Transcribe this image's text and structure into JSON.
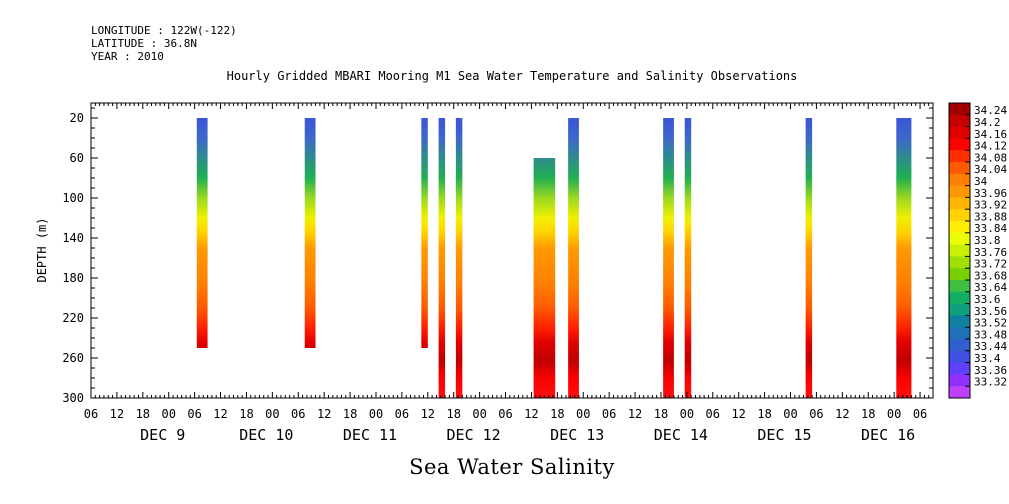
{
  "header": {
    "longitude": "LONGITUDE : 122W(-122)",
    "latitude": "LATITUDE : 36.8N",
    "year": "YEAR : 2010"
  },
  "chart_data": {
    "type": "heatmap",
    "title": "Hourly Gridded MBARI Mooring M1 Sea Water Temperature and Salinity Observations",
    "variable_label": "Sea Water Salinity",
    "ylabel": "DEPTH (m)",
    "yreversed": true,
    "ylim": [
      300,
      0
    ],
    "yticks": [
      20,
      60,
      100,
      140,
      180,
      220,
      260,
      300
    ],
    "xunit": "hours since DEC 8 06:00",
    "xlim": [
      0,
      195
    ],
    "xtick_labels": [
      "06",
      "12",
      "18",
      "00",
      "06",
      "12",
      "18",
      "00",
      "06",
      "12",
      "18",
      "00",
      "06",
      "12",
      "18",
      "00",
      "06",
      "12",
      "18",
      "00",
      "06",
      "12",
      "18",
      "00",
      "06",
      "12",
      "18",
      "00",
      "06",
      "12",
      "18",
      "00",
      "06"
    ],
    "day_labels": [
      "DEC  9",
      "DEC 10",
      "DEC 11",
      "DEC 12",
      "DEC 13",
      "DEC 14",
      "DEC 15",
      "DEC 16"
    ],
    "colorbar": {
      "levels": [
        "34.24",
        "34.2",
        "34.16",
        "34.12",
        "34.08",
        "34.04",
        "34",
        "33.96",
        "33.92",
        "33.88",
        "33.84",
        "33.8",
        "33.76",
        "33.72",
        "33.68",
        "33.64",
        "33.6",
        "33.56",
        "33.52",
        "33.48",
        "33.44",
        "33.4",
        "33.36",
        "33.32"
      ],
      "colors": [
        "#a00000",
        "#c40000",
        "#e00000",
        "#ff0000",
        "#ff3000",
        "#ff5a00",
        "#ff7f00",
        "#ff9800",
        "#ffb400",
        "#ffd200",
        "#ffee00",
        "#eaff00",
        "#c8f000",
        "#a0e000",
        "#78d000",
        "#40c040",
        "#10b060",
        "#10a080",
        "#1080a0",
        "#2070b8",
        "#3060d0",
        "#4050e0",
        "#6040ff",
        "#9030ff",
        "#c040ff"
      ]
    },
    "profiles": [
      {
        "x0": 24.5,
        "x1": 27.0,
        "top": 20,
        "bottom": 250
      },
      {
        "x0": 49.5,
        "x1": 52.0,
        "top": 20,
        "bottom": 250
      },
      {
        "x0": 76.5,
        "x1": 78.0,
        "top": 20,
        "bottom": 250
      },
      {
        "x0": 80.5,
        "x1": 82.0,
        "top": 20,
        "bottom": 300
      },
      {
        "x0": 84.5,
        "x1": 86.0,
        "top": 20,
        "bottom": 300
      },
      {
        "x0": 102.5,
        "x1": 107.5,
        "top": 60,
        "bottom": 300
      },
      {
        "x0": 110.5,
        "x1": 113.0,
        "top": 20,
        "bottom": 300
      },
      {
        "x0": 132.5,
        "x1": 135.0,
        "top": 20,
        "bottom": 300
      },
      {
        "x0": 137.5,
        "x1": 139.0,
        "top": 20,
        "bottom": 300
      },
      {
        "x0": 165.5,
        "x1": 167.0,
        "top": 20,
        "bottom": 300
      },
      {
        "x0": 186.5,
        "x1": 190.0,
        "top": 20,
        "bottom": 300
      }
    ]
  }
}
